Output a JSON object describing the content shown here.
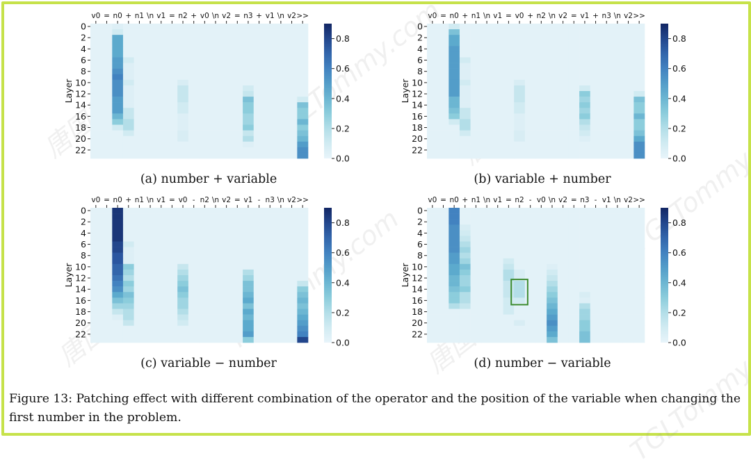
{
  "figure": {
    "caption": "Figure 13: Patching effect with different combination of the operator and the position of the variable when changing the first number in the problem.",
    "accent_border": "#c6e24a"
  },
  "watermark": {
    "text": "唐国梁Tommy",
    "text2": "TGLTommy.com"
  },
  "y_axis": {
    "label": "Layer",
    "ticks": [
      "0",
      "2",
      "4",
      "6",
      "8",
      "10",
      "12",
      "14",
      "16",
      "18",
      "20",
      "22"
    ]
  },
  "colorbar": {
    "ticks": [
      "0.0",
      "0.2",
      "0.4",
      "0.6",
      "0.8"
    ],
    "values": [
      0.0,
      0.2,
      0.4,
      0.6,
      0.8
    ],
    "vmax": 0.9
  },
  "panels": [
    {
      "caption": "(a) number + variable",
      "tokens": [
        "v0",
        "=",
        "n0",
        "+",
        "n1",
        "\\n",
        "v1",
        "=",
        "n2",
        "+",
        "v0",
        "\\n",
        "v2",
        "=",
        "n3",
        "+",
        "v1",
        "\\n",
        "v2",
        ">>"
      ],
      "columns": [
        {
          "col": 2,
          "vals": [
            0.05,
            0.1,
            0.45,
            0.45,
            0.45,
            0.45,
            0.5,
            0.5,
            0.55,
            0.6,
            0.55,
            0.55,
            0.55,
            0.5,
            0.5,
            0.5,
            0.4,
            0.3,
            0.1
          ]
        },
        {
          "col": 3,
          "vals": [
            0,
            0,
            0,
            0,
            0,
            0,
            0.1,
            0.05,
            0.05,
            0.05,
            0.1,
            0.05,
            0.05,
            0.05,
            0.05,
            0.15,
            0.15,
            0.2,
            0.2,
            0.1
          ]
        },
        {
          "col": 8,
          "vals": [
            0,
            0,
            0,
            0,
            0,
            0,
            0,
            0,
            0,
            0,
            0.07,
            0.15,
            0.15,
            0.15,
            0.1,
            0.1,
            0.05,
            0.05,
            0.05,
            0.07,
            0.07
          ]
        },
        {
          "col": 14,
          "vals": [
            0,
            0,
            0,
            0,
            0,
            0,
            0,
            0,
            0,
            0,
            0,
            0.1,
            0.15,
            0.35,
            0.3,
            0.3,
            0.25,
            0.25,
            0.3,
            0.15,
            0.2,
            0.05
          ]
        },
        {
          "col": 19,
          "vals": [
            0,
            0,
            0,
            0,
            0,
            0,
            0,
            0,
            0,
            0,
            0,
            0,
            0,
            0.1,
            0.35,
            0.3,
            0.3,
            0.4,
            0.3,
            0.35,
            0.4,
            0.5,
            0.55,
            0.55
          ]
        }
      ],
      "box": null
    },
    {
      "caption": "(b) variable + number",
      "tokens": [
        "v0",
        "=",
        "n0",
        "+",
        "n1",
        "\\n",
        "v1",
        "=",
        "v0",
        "+",
        "n2",
        "\\n",
        "v2",
        "=",
        "v1",
        "+",
        "n3",
        "\\n",
        "v2",
        ">>"
      ],
      "columns": [
        {
          "col": 2,
          "vals": [
            0.1,
            0.35,
            0.45,
            0.45,
            0.5,
            0.5,
            0.5,
            0.5,
            0.5,
            0.5,
            0.5,
            0.5,
            0.5,
            0.4,
            0.4,
            0.35,
            0.3,
            0.1
          ]
        },
        {
          "col": 3,
          "vals": [
            0,
            0,
            0,
            0,
            0,
            0,
            0.1,
            0.05,
            0.05,
            0.05,
            0.1,
            0.05,
            0.05,
            0.05,
            0.05,
            0.15,
            0.15,
            0.2,
            0.2,
            0.1
          ]
        },
        {
          "col": 8,
          "vals": [
            0,
            0,
            0,
            0,
            0,
            0,
            0,
            0,
            0,
            0,
            0.07,
            0.15,
            0.15,
            0.15,
            0.1,
            0.1,
            0.05,
            0.05,
            0.05,
            0.07,
            0.07
          ]
        },
        {
          "col": 14,
          "vals": [
            0,
            0,
            0,
            0,
            0,
            0,
            0,
            0,
            0,
            0,
            0,
            0.1,
            0.3,
            0.25,
            0.3,
            0.25,
            0.3,
            0.2,
            0.15,
            0.1,
            0.05
          ]
        },
        {
          "col": 19,
          "vals": [
            0,
            0,
            0,
            0,
            0,
            0,
            0,
            0,
            0,
            0,
            0,
            0,
            0.1,
            0.35,
            0.3,
            0.3,
            0.4,
            0.3,
            0.3,
            0.35,
            0.45,
            0.55,
            0.55,
            0.55
          ]
        }
      ],
      "box": null
    },
    {
      "caption": "(c) variable − number",
      "tokens": [
        "v0",
        "=",
        "n0",
        "+",
        "n1",
        "\\n",
        "v1",
        "=",
        "v0",
        "-",
        "n2",
        "\\n",
        "v2",
        "=",
        "v1",
        "-",
        "n3",
        "\\n",
        "v2",
        ">>"
      ],
      "columns": [
        {
          "col": 2,
          "vals": [
            0.85,
            0.85,
            0.85,
            0.85,
            0.85,
            0.85,
            0.8,
            0.8,
            0.75,
            0.75,
            0.7,
            0.7,
            0.65,
            0.6,
            0.55,
            0.45,
            0.35,
            0.25,
            0.15,
            0.05
          ]
        },
        {
          "col": 3,
          "vals": [
            0,
            0,
            0,
            0,
            0,
            0,
            0.1,
            0.05,
            0.05,
            0.05,
            0.3,
            0.25,
            0.2,
            0.3,
            0.25,
            0.35,
            0.3,
            0.25,
            0.2,
            0.2,
            0.15
          ]
        },
        {
          "col": 8,
          "vals": [
            0,
            0,
            0,
            0,
            0,
            0,
            0,
            0,
            0,
            0,
            0.15,
            0.2,
            0.25,
            0.3,
            0.35,
            0.3,
            0.25,
            0.25,
            0.2,
            0.15,
            0.1
          ]
        },
        {
          "col": 14,
          "vals": [
            0,
            0,
            0,
            0,
            0,
            0,
            0,
            0,
            0,
            0,
            0,
            0.2,
            0.25,
            0.35,
            0.35,
            0.4,
            0.45,
            0.35,
            0.45,
            0.4,
            0.45,
            0.45,
            0.5,
            0.3
          ]
        },
        {
          "col": 19,
          "vals": [
            0,
            0,
            0,
            0,
            0,
            0,
            0,
            0,
            0,
            0,
            0,
            0,
            0,
            0.15,
            0.3,
            0.35,
            0.4,
            0.35,
            0.4,
            0.45,
            0.5,
            0.55,
            0.6,
            0.8
          ]
        }
      ],
      "box": null
    },
    {
      "caption": "(d) number − variable",
      "tokens": [
        "v0",
        "=",
        "n0",
        "+",
        "n1",
        "\\n",
        "v1",
        "=",
        "n2",
        "-",
        "v0",
        "\\n",
        "v2",
        "=",
        "n3",
        "-",
        "v1",
        "\\n",
        "v2",
        ">>"
      ],
      "columns": [
        {
          "col": 2,
          "vals": [
            0.6,
            0.6,
            0.6,
            0.55,
            0.55,
            0.55,
            0.55,
            0.55,
            0.5,
            0.5,
            0.45,
            0.45,
            0.4,
            0.4,
            0.35,
            0.3,
            0.3,
            0.2
          ]
        },
        {
          "col": 3,
          "vals": [
            0,
            0,
            0,
            0.07,
            0.1,
            0.15,
            0.2,
            0.25,
            0.2,
            0.25,
            0.35,
            0.3,
            0.25,
            0.25,
            0.3,
            0.2,
            0.2,
            0.15
          ]
        },
        {
          "col": 7,
          "vals": [
            0,
            0,
            0,
            0,
            0,
            0,
            0,
            0,
            0,
            0.1,
            0.15,
            0.2,
            0.2,
            0.15,
            0.15,
            0.15,
            0.1,
            0.1,
            0.1
          ]
        },
        {
          "col": 8,
          "vals": [
            0,
            0,
            0,
            0,
            0,
            0,
            0,
            0,
            0,
            0,
            0,
            0.07,
            0.07,
            0.2,
            0.2,
            0.2,
            0.1,
            0,
            0,
            0,
            0.07
          ]
        },
        {
          "col": 11,
          "vals": [
            0,
            0,
            0,
            0,
            0,
            0,
            0,
            0,
            0,
            0,
            0.05,
            0.1,
            0.15,
            0.2,
            0.25,
            0.3,
            0.35,
            0.4,
            0.45,
            0.5,
            0.55,
            0.5,
            0.45,
            0.35
          ]
        },
        {
          "col": 14,
          "vals": [
            0,
            0,
            0,
            0,
            0,
            0,
            0,
            0,
            0,
            0,
            0,
            0,
            0,
            0,
            0,
            0.07,
            0.05,
            0.2,
            0.25,
            0.25,
            0.3,
            0.3,
            0.35,
            0.35
          ]
        },
        {
          "col": 19,
          "vals": [
            0,
            0,
            0,
            0,
            0,
            0,
            0,
            0,
            0,
            0,
            0,
            0,
            0,
            0,
            0,
            0,
            0,
            0,
            0,
            0,
            0,
            0,
            0,
            0
          ]
        }
      ],
      "box": {
        "col": 8,
        "row_start": 13,
        "row_end": 17,
        "color": "#3d8b2f"
      }
    }
  ]
}
